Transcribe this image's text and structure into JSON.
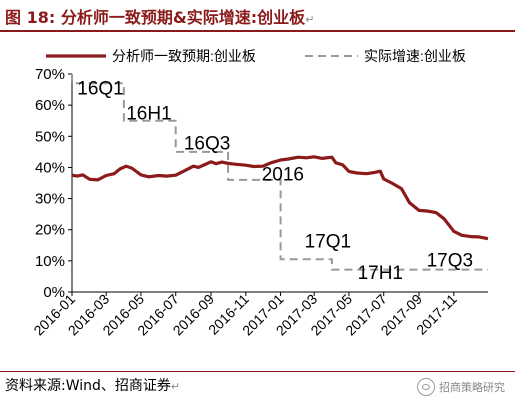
{
  "title": {
    "label": "图 18:",
    "text": "分析师一致预期&实际增速:创业板",
    "mark": "↵"
  },
  "source": {
    "text": "资料来源:Wind、招商证券",
    "mark": "↵"
  },
  "watermark": {
    "text": "招商策略研究",
    "icon": "wechat-icon"
  },
  "colors": {
    "accent": "#8b1a1a",
    "expected_line": "#8b1a1a",
    "actual_line": "#999999"
  },
  "chart_data": {
    "type": "line",
    "title": "",
    "xlabel": "",
    "ylabel": "",
    "ylim": [
      0,
      70
    ],
    "yticks": [
      "0%",
      "10%",
      "20%",
      "30%",
      "40%",
      "50%",
      "60%",
      "70%"
    ],
    "ytick_values": [
      0,
      10,
      20,
      30,
      40,
      50,
      60,
      70
    ],
    "xlim": [
      "2016-01-01",
      "2017-12-31"
    ],
    "xticks": [
      "2016-01",
      "2016-03",
      "2016-05",
      "2016-07",
      "2016-09",
      "2016-11",
      "2017-01",
      "2017-03",
      "2017-05",
      "2017-07",
      "2017-09",
      "2017-11"
    ],
    "grid": false,
    "legend": "top",
    "series": [
      {
        "name": "分析师一致预期:创业板",
        "style": "solid",
        "points": [
          [
            "2016-01-01",
            37.5
          ],
          [
            "2016-01-10",
            37.2
          ],
          [
            "2016-01-20",
            37.6
          ],
          [
            "2016-02-01",
            36.2
          ],
          [
            "2016-02-15",
            36.0
          ],
          [
            "2016-03-01",
            37.4
          ],
          [
            "2016-03-15",
            38.0
          ],
          [
            "2016-03-25",
            39.5
          ],
          [
            "2016-04-05",
            40.4
          ],
          [
            "2016-04-15",
            39.8
          ],
          [
            "2016-05-01",
            37.6
          ],
          [
            "2016-05-15",
            37.0
          ],
          [
            "2016-06-01",
            37.4
          ],
          [
            "2016-06-15",
            37.2
          ],
          [
            "2016-07-01",
            37.5
          ],
          [
            "2016-07-15",
            38.8
          ],
          [
            "2016-08-01",
            40.4
          ],
          [
            "2016-08-10",
            40.0
          ],
          [
            "2016-08-20",
            40.8
          ],
          [
            "2016-09-01",
            41.8
          ],
          [
            "2016-09-10",
            41.2
          ],
          [
            "2016-09-20",
            41.7
          ],
          [
            "2016-10-01",
            41.3
          ],
          [
            "2016-10-15",
            41.0
          ],
          [
            "2016-11-01",
            40.7
          ],
          [
            "2016-11-15",
            40.3
          ],
          [
            "2016-12-01",
            40.4
          ],
          [
            "2016-12-15",
            41.5
          ],
          [
            "2017-01-01",
            42.4
          ],
          [
            "2017-01-15",
            42.7
          ],
          [
            "2017-02-01",
            43.3
          ],
          [
            "2017-02-15",
            43.1
          ],
          [
            "2017-03-01",
            43.4
          ],
          [
            "2017-03-15",
            42.9
          ],
          [
            "2017-04-01",
            43.3
          ],
          [
            "2017-04-08",
            41.5
          ],
          [
            "2017-04-20",
            40.8
          ],
          [
            "2017-05-01",
            38.7
          ],
          [
            "2017-05-15",
            38.2
          ],
          [
            "2017-06-01",
            38.0
          ],
          [
            "2017-06-15",
            38.4
          ],
          [
            "2017-06-25",
            38.8
          ],
          [
            "2017-07-01",
            36.3
          ],
          [
            "2017-07-15",
            35.0
          ],
          [
            "2017-08-01",
            33.2
          ],
          [
            "2017-08-15",
            28.7
          ],
          [
            "2017-09-01",
            26.2
          ],
          [
            "2017-09-15",
            26.0
          ],
          [
            "2017-10-01",
            25.5
          ],
          [
            "2017-10-15",
            23.5
          ],
          [
            "2017-11-01",
            19.5
          ],
          [
            "2017-11-15",
            18.2
          ],
          [
            "2017-12-01",
            17.8
          ],
          [
            "2017-12-15",
            17.7
          ],
          [
            "2017-12-31",
            17.1
          ]
        ]
      },
      {
        "name": "实际增速:创业板",
        "style": "dashed",
        "points": [
          [
            "2016-01-01",
            70.0
          ],
          [
            "2016-01-01",
            67.0
          ],
          [
            "2016-04-01",
            67.0
          ],
          [
            "2016-04-01",
            55.0
          ],
          [
            "2016-07-01",
            55.0
          ],
          [
            "2016-07-01",
            45.0
          ],
          [
            "2016-10-01",
            45.0
          ],
          [
            "2016-10-01",
            36.0
          ],
          [
            "2017-01-01",
            36.0
          ],
          [
            "2017-01-01",
            10.5
          ],
          [
            "2017-04-01",
            10.5
          ],
          [
            "2017-04-01",
            7.2
          ],
          [
            "2017-12-31",
            7.2
          ]
        ]
      }
    ],
    "annotations": [
      {
        "text": "16Q1",
        "x": "2016-02-20",
        "y": 65.6
      },
      {
        "text": "16H1",
        "x": "2016-05-15",
        "y": 57.6
      },
      {
        "text": "16Q3",
        "x": "2016-08-25",
        "y": 48.0
      },
      {
        "text": "2016",
        "x": "2017-01-05",
        "y": 38.0
      },
      {
        "text": "17Q1",
        "x": "2017-03-25",
        "y": 16.5
      },
      {
        "text": "17H1",
        "x": "2017-06-25",
        "y": 6.5
      },
      {
        "text": "17Q3",
        "x": "2017-10-25",
        "y": 10.5
      }
    ]
  }
}
